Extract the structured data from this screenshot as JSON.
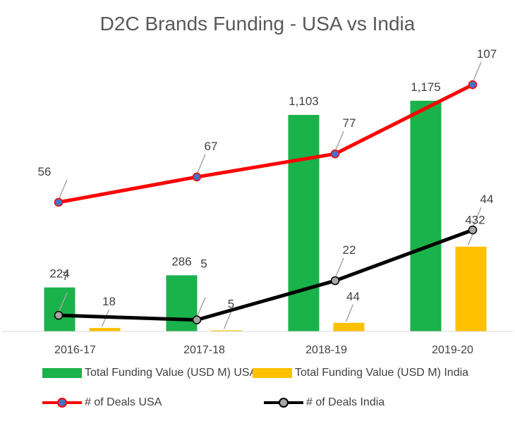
{
  "chart_data": {
    "type": "bar",
    "title": "D2C Brands Funding - USA vs India",
    "categories": [
      "2016-17",
      "2017-18",
      "2018-19",
      "2019-20"
    ],
    "bar_series": [
      {
        "name": "Total Funding Value (USD M) USA",
        "values": [
          224,
          286,
          1103,
          1175
        ],
        "labels": [
          "224",
          "286",
          "1,103",
          "1,175"
        ],
        "color": "#1ab24a"
      },
      {
        "name": "Total Funding Value (USD M) India",
        "values": [
          18,
          5,
          44,
          432
        ],
        "labels": [
          "18",
          "5",
          "44",
          "432"
        ],
        "color": "#ffc000"
      }
    ],
    "line_series": [
      {
        "name": "# of Deals USA",
        "values": [
          56,
          67,
          77,
          107
        ],
        "labels": [
          "56",
          "67",
          "77",
          "107"
        ],
        "color": "#ff0000",
        "marker_color": "#4472c4"
      },
      {
        "name": "# of Deals India",
        "values": [
          7,
          5,
          22,
          44
        ],
        "labels": [
          "7",
          "5",
          "22",
          "44"
        ],
        "color": "#000000",
        "marker_color": "#a6a6a6"
      }
    ],
    "legend": "bottom"
  }
}
